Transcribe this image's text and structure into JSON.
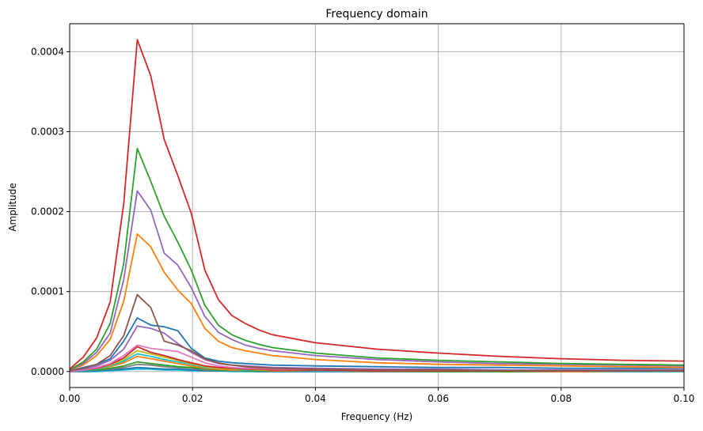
{
  "chart_data": {
    "type": "line",
    "title": "Frequency domain",
    "xlabel": "Frequency (Hz)",
    "ylabel": "Amplitude",
    "xlim": [
      0.0,
      0.1
    ],
    "ylim": [
      -2e-05,
      0.000435
    ],
    "xticks": [
      0.0,
      0.02,
      0.04,
      0.06,
      0.08,
      0.1
    ],
    "xtick_labels": [
      "0.00",
      "0.02",
      "0.04",
      "0.06",
      "0.08",
      "0.10"
    ],
    "yticks": [
      0.0,
      0.0001,
      0.0002,
      0.0003,
      0.0004
    ],
    "ytick_labels": [
      "0.0000",
      "0.0001",
      "0.0002",
      "0.0003",
      "0.0004"
    ],
    "grid": true,
    "legend": "none",
    "x": [
      0.0,
      0.0022,
      0.0044,
      0.0066,
      0.0088,
      0.011,
      0.0132,
      0.0154,
      0.0176,
      0.0198,
      0.022,
      0.0242,
      0.0264,
      0.0286,
      0.0308,
      0.033,
      0.04,
      0.05,
      0.06,
      0.07,
      0.08,
      0.09,
      0.1
    ],
    "series": [
      {
        "color": "#d62728",
        "values": [
          3e-06,
          1.8e-05,
          4.2e-05,
          8.7e-05,
          0.00021,
          0.000415,
          0.00037,
          0.00029,
          0.000245,
          0.000198,
          0.000127,
          9e-05,
          7e-05,
          6e-05,
          5.2e-05,
          4.6e-05,
          3.6e-05,
          2.8e-05,
          2.3e-05,
          1.9e-05,
          1.6e-05,
          1.4e-05,
          1.3e-05
        ]
      },
      {
        "color": "#2ca02c",
        "values": [
          2e-06,
          1.2e-05,
          2.8e-05,
          6e-05,
          0.000135,
          0.000279,
          0.000238,
          0.000194,
          0.000162,
          0.000127,
          8.3e-05,
          5.8e-05,
          4.6e-05,
          3.9e-05,
          3.4e-05,
          3e-05,
          2.3e-05,
          1.7e-05,
          1.4e-05,
          1.2e-05,
          1e-05,
          9e-06,
          8e-06
        ]
      },
      {
        "color": "#9467bd",
        "values": [
          2e-06,
          1e-05,
          2.4e-05,
          4.8e-05,
          0.000115,
          0.000226,
          0.000202,
          0.000148,
          0.000133,
          0.000105,
          6.9e-05,
          4.9e-05,
          4e-05,
          3.3e-05,
          2.9e-05,
          2.6e-05,
          2e-05,
          1.5e-05,
          1.2e-05,
          1e-05,
          9e-06,
          8e-06,
          7e-06
        ]
      },
      {
        "color": "#ff7f0e",
        "values": [
          2e-06,
          8e-06,
          2e-05,
          4e-05,
          8.8e-05,
          0.000172,
          0.000156,
          0.000124,
          0.000102,
          8.5e-05,
          5.4e-05,
          3.8e-05,
          3e-05,
          2.6e-05,
          2.3e-05,
          2e-05,
          1.5e-05,
          1.1e-05,
          9e-06,
          8e-06,
          7e-06,
          6e-06,
          5e-06
        ]
      },
      {
        "color": "#8c564b",
        "values": [
          1e-06,
          4e-06,
          9e-06,
          2e-05,
          4.5e-05,
          9.6e-05,
          8e-05,
          3.8e-05,
          3.3e-05,
          2.6e-05,
          1.6e-05,
          1.1e-05,
          8e-06,
          6e-06,
          5e-06,
          4e-06,
          3e-06,
          2e-06,
          2e-06,
          1e-06,
          1e-06,
          1e-06,
          1e-06
        ]
      },
      {
        "color": "#1f77b4",
        "values": [
          1e-06,
          5e-06,
          9e-06,
          1.6e-05,
          3.8e-05,
          6.7e-05,
          5.8e-05,
          5.6e-05,
          5.1e-05,
          2.9e-05,
          1.7e-05,
          1.3e-05,
          1.1e-05,
          1e-05,
          9e-06,
          8e-06,
          7e-06,
          6e-06,
          5e-06,
          5e-06,
          4e-06,
          4e-06,
          4e-06
        ]
      },
      {
        "color": "#9467bd",
        "values": [
          1e-06,
          3e-06,
          7e-06,
          1.4e-05,
          2.8e-05,
          5.7e-05,
          5.4e-05,
          4.8e-05,
          3.5e-05,
          2.4e-05,
          1.5e-05,
          1e-05,
          8e-06,
          7e-06,
          6e-06,
          5e-06,
          4e-06,
          3e-06,
          3e-06,
          2e-06,
          2e-06,
          2e-06,
          2e-06
        ]
      },
      {
        "color": "#e377c2",
        "values": [
          0.0,
          2e-06,
          5e-06,
          1e-05,
          2e-05,
          3.3e-05,
          2.9e-05,
          2.7e-05,
          2.5e-05,
          1.8e-05,
          1.1e-05,
          7e-06,
          5e-06,
          4e-06,
          4e-06,
          3e-06,
          3e-06,
          2e-06,
          2e-06,
          2e-06,
          1e-06,
          1e-06,
          1e-06
        ]
      },
      {
        "color": "#d62728",
        "values": [
          0.0,
          2e-06,
          4e-06,
          9e-06,
          1.7e-05,
          3.1e-05,
          2.4e-05,
          2e-05,
          1.5e-05,
          1.1e-05,
          7e-06,
          5e-06,
          4e-06,
          3e-06,
          3e-06,
          2e-06,
          2e-06,
          1e-06,
          1e-06,
          1e-06,
          1e-06,
          1e-06,
          1e-06
        ]
      },
      {
        "color": "#bcbd22",
        "values": [
          0.0,
          2e-06,
          4e-06,
          8e-06,
          1.5e-05,
          2.6e-05,
          2.2e-05,
          1.8e-05,
          1.4e-05,
          1e-05,
          6e-06,
          4e-06,
          3e-06,
          3e-06,
          2e-06,
          2e-06,
          2e-06,
          1e-06,
          1e-06,
          1e-06,
          1e-06,
          1e-06,
          1e-06
        ]
      },
      {
        "color": "#17becf",
        "values": [
          0.0,
          1e-06,
          3e-06,
          7e-06,
          1.3e-05,
          2.2e-05,
          1.9e-05,
          1.5e-05,
          1.2e-05,
          9e-06,
          5e-06,
          4e-06,
          3e-06,
          2e-06,
          2e-06,
          2e-06,
          1e-06,
          1e-06,
          1e-06,
          1e-06,
          1e-06,
          0.0,
          0.0
        ]
      },
      {
        "color": "#ff7f0e",
        "values": [
          0.0,
          1e-06,
          3e-06,
          6e-06,
          1.1e-05,
          1.9e-05,
          1.6e-05,
          1.3e-05,
          1e-05,
          7e-06,
          4e-06,
          3e-06,
          2e-06,
          2e-06,
          2e-06,
          1e-06,
          1e-06,
          1e-06,
          1e-06,
          1e-06,
          0.0,
          0.0,
          0.0
        ]
      },
      {
        "color": "#2ca02c",
        "values": [
          0.0,
          1e-06,
          2e-06,
          4e-06,
          7e-06,
          1.2e-05,
          1e-05,
          8e-06,
          6e-06,
          5e-06,
          3e-06,
          2e-06,
          2e-06,
          1e-06,
          1e-06,
          1e-06,
          1e-06,
          1e-06,
          0.0,
          0.0,
          0.0,
          0.0,
          0.0
        ]
      },
      {
        "color": "#7f7f7f",
        "values": [
          0.0,
          1e-06,
          2e-06,
          3e-06,
          5e-06,
          9e-06,
          8e-06,
          6e-06,
          5e-06,
          4e-06,
          2e-06,
          2e-06,
          1e-06,
          1e-06,
          1e-06,
          1e-06,
          1e-06,
          0.0,
          0.0,
          0.0,
          0.0,
          0.0,
          0.0
        ]
      },
      {
        "color": "#1f77b4",
        "values": [
          0.0,
          0.0,
          1e-06,
          2e-06,
          3e-06,
          5e-06,
          4e-06,
          3e-06,
          3e-06,
          2e-06,
          1e-06,
          1e-06,
          1e-06,
          1e-06,
          0.0,
          0.0,
          0.0,
          0.0,
          0.0,
          0.0,
          0.0,
          0.0,
          0.0
        ]
      },
      {
        "color": "#17becf",
        "values": [
          0.0,
          0.0,
          0.0,
          1e-06,
          2e-06,
          3e-06,
          3e-06,
          2e-06,
          2e-06,
          1e-06,
          1e-06,
          1e-06,
          0.0,
          0.0,
          0.0,
          0.0,
          0.0,
          0.0,
          0.0,
          0.0,
          0.0,
          0.0,
          0.0
        ]
      }
    ]
  }
}
